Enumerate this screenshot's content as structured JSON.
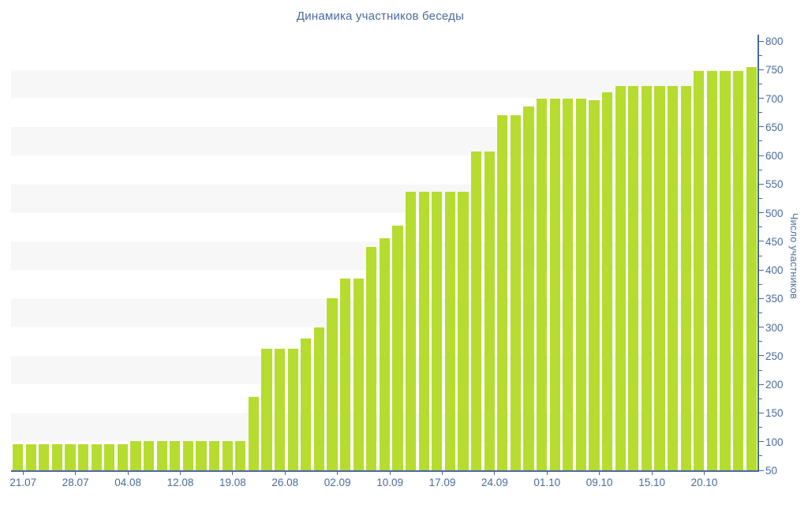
{
  "title": "Динамика участников беседы",
  "chart_data": {
    "type": "bar",
    "title": "Динамика участников беседы",
    "xlabel": "",
    "ylabel": "Число участников",
    "ylim": [
      50,
      800
    ],
    "y_tick_step": 50,
    "y_minor_tick_step": 25,
    "legend_position": "none",
    "grid": "alternating-horizontal-bands",
    "x_tick_labels": [
      "21.07",
      "28.07",
      "04.08",
      "12.08",
      "19.08",
      "26.08",
      "02.09",
      "10.09",
      "17.09",
      "24.09",
      "01.10",
      "09.10",
      "15.10",
      "20.10"
    ],
    "bars_per_tick": 4,
    "bar_count": 57,
    "values": [
      96,
      96,
      96,
      96,
      96,
      96,
      96,
      96,
      96,
      101,
      101,
      101,
      101,
      101,
      101,
      101,
      101,
      101,
      178,
      262,
      262,
      262,
      280,
      300,
      350,
      385,
      385,
      440,
      455,
      478,
      536,
      536,
      536,
      536,
      536,
      607,
      607,
      670,
      670,
      685,
      700,
      700,
      700,
      700,
      697,
      710,
      722,
      722,
      722,
      722,
      722,
      722,
      748,
      748,
      748,
      748,
      755
    ]
  },
  "colors": {
    "bar": "#b5dc2f",
    "text": "#4a6b9c",
    "axis": "#4a689b",
    "band_gray": "#f7f7f7",
    "background": "#ffffff"
  }
}
